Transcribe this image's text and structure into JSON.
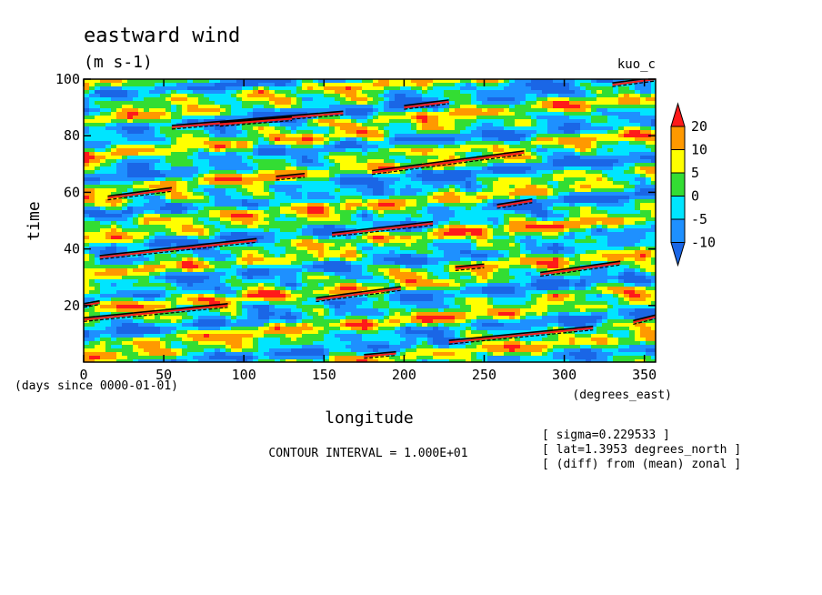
{
  "chart_data": {
    "type": "heatmap",
    "title": "eastward wind",
    "units": "(m s-1)",
    "experiment": "kuo_c",
    "xlabel": "longitude",
    "xunits": "(degrees_east)",
    "ylabel": "time",
    "yunits": "(days since 0000-01-01)",
    "xlim": [
      0,
      357
    ],
    "ylim": [
      0,
      100
    ],
    "xticks": [
      0,
      50,
      100,
      150,
      200,
      250,
      300,
      350
    ],
    "yticks": [
      20,
      40,
      60,
      80,
      100
    ],
    "colorbar": {
      "levels": [
        20,
        10,
        5,
        0,
        -5,
        -10
      ],
      "colors": [
        "#ff1a1a",
        "#ff9900",
        "#ffff00",
        "#33dd33",
        "#00e5ff",
        "#1e90ff",
        "#1a66e6"
      ],
      "extend": "both"
    },
    "contour_interval": "CONTOUR INTERVAL = 1.000E+01",
    "annotations": [
      "[ sigma=0.229533 ]",
      "[ lat=1.3953 degrees_north ]",
      "[ (diff) from (mean) zonal ]"
    ],
    "contour_streaks": [
      {
        "x0": 0,
        "y0": 15,
        "x1": 90,
        "y1": 20
      },
      {
        "x0": 0,
        "y0": 20,
        "x1": 10,
        "y1": 21
      },
      {
        "x0": 10,
        "y0": 37,
        "x1": 108,
        "y1": 43
      },
      {
        "x0": 15,
        "y0": 58,
        "x1": 55,
        "y1": 61
      },
      {
        "x0": 55,
        "y0": 83,
        "x1": 162,
        "y1": 88
      },
      {
        "x0": 85,
        "y0": 84,
        "x1": 130,
        "y1": 86
      },
      {
        "x0": 120,
        "y0": 65,
        "x1": 138,
        "y1": 66
      },
      {
        "x0": 145,
        "y0": 22,
        "x1": 198,
        "y1": 26
      },
      {
        "x0": 155,
        "y0": 45,
        "x1": 218,
        "y1": 49
      },
      {
        "x0": 175,
        "y0": 2,
        "x1": 195,
        "y1": 3
      },
      {
        "x0": 180,
        "y0": 67,
        "x1": 275,
        "y1": 74
      },
      {
        "x0": 200,
        "y0": 90,
        "x1": 228,
        "y1": 92
      },
      {
        "x0": 228,
        "y0": 7,
        "x1": 318,
        "y1": 12
      },
      {
        "x0": 232,
        "y0": 33,
        "x1": 250,
        "y1": 34
      },
      {
        "x0": 258,
        "y0": 55,
        "x1": 280,
        "y1": 57
      },
      {
        "x0": 285,
        "y0": 31,
        "x1": 335,
        "y1": 35
      },
      {
        "x0": 330,
        "y0": 98,
        "x1": 357,
        "y1": 100
      },
      {
        "x0": 343,
        "y0": 14,
        "x1": 357,
        "y1": 16
      }
    ]
  }
}
